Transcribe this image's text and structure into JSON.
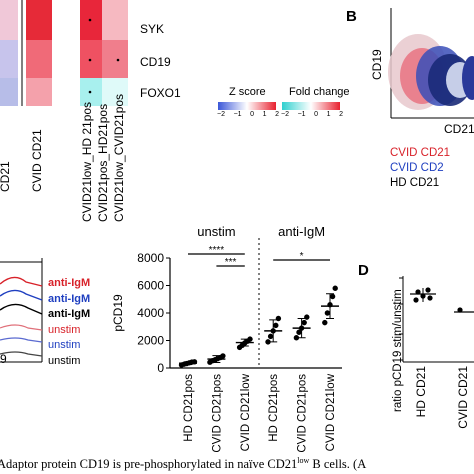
{
  "panel_letters": {
    "B": "B",
    "D": "D"
  },
  "heatmap": {
    "genes": [
      "SYK",
      "CD19",
      "FOXO1"
    ],
    "zscore_label": "Z score",
    "fold_label": "Fold change",
    "zscore_ticks": [
      "−2",
      "−1",
      "0",
      "1",
      "2"
    ],
    "fold_ticks": [
      "−2",
      "−1",
      "0",
      "1",
      "2"
    ],
    "col_labels_left": [
      "CD21",
      "CVID CD21"
    ],
    "col_labels_right": [
      "CVID21low_HD 21pos",
      "CVID21pos_HD21pos",
      "CVID21low_CVID21pos"
    ],
    "zscore_colors": {
      "low": "#3b57d8",
      "mid": "#ffffff",
      "high": "#e8212f"
    },
    "fold_colors": {
      "low": "#2fd0cf",
      "mid": "#ffffff",
      "high": "#e8212f"
    }
  },
  "flow_b": {
    "y_label": "CD19",
    "x_label": "CD21",
    "legend": [
      {
        "label": "CVID CD21",
        "color": "#d8222a"
      },
      {
        "label": "CVID CD2",
        "color": "#1f3fc0"
      },
      {
        "label": "HD CD21",
        "color": "#000000"
      }
    ]
  },
  "histogram": {
    "labels": [
      {
        "text": "anti-IgM",
        "color": "#d8222a"
      },
      {
        "text": "anti-IgM",
        "color": "#1f3fc0"
      },
      {
        "text": "anti-IgM",
        "color": "#000000"
      },
      {
        "text": "unstim",
        "color": "#d8222a"
      },
      {
        "text": "unstim",
        "color": "#1f3fc0"
      },
      {
        "text": "unstim",
        "color": "#000000"
      }
    ],
    "axis_fragment": "9"
  },
  "panel_d": {
    "ylabel": "ratio pCD19 stim/unstim",
    "tick_labels": [
      "HD CD21",
      "CVID CD21"
    ]
  },
  "caption": "Adaptor protein CD19 is pre-phosphorylated in naïve CD21",
  "caption_sup": "low",
  "caption_tail": " B cells. (A",
  "chart_data": {
    "type": "scatter",
    "ylabel": "pCD19",
    "ylim": [
      0,
      8000
    ],
    "yticks": [
      0,
      2000,
      4000,
      6000,
      8000
    ],
    "ytick_labels": [
      "0",
      "2000",
      "4000",
      "6000",
      "8000"
    ],
    "groups": [
      {
        "condition": "unstim",
        "label": "HD CD21pos",
        "mean": 350,
        "sd": 100,
        "points": [
          220,
          280,
          320,
          380,
          430,
          450
        ]
      },
      {
        "condition": "unstim",
        "label": "CVID CD21pos",
        "mean": 650,
        "sd": 250,
        "points": [
          420,
          530,
          600,
          680,
          760,
          880
        ]
      },
      {
        "condition": "unstim",
        "label": "CVID CD21low",
        "mean": 1850,
        "sd": 250,
        "points": [
          1500,
          1650,
          1820,
          1950,
          2100
        ]
      },
      {
        "condition": "anti-IgM",
        "label": "HD CD21pos",
        "mean": 2700,
        "sd": 800,
        "points": [
          1900,
          2300,
          2700,
          3100,
          3600
        ]
      },
      {
        "condition": "anti-IgM",
        "label": "CVID CD21pos",
        "mean": 2900,
        "sd": 700,
        "points": [
          2200,
          2600,
          2900,
          3300,
          3700
        ]
      },
      {
        "condition": "anti-IgM",
        "label": "CVID CD21low",
        "mean": 4500,
        "sd": 900,
        "points": [
          3300,
          4000,
          4600,
          5200,
          5800
        ]
      }
    ],
    "condition_labels": [
      "unstim",
      "anti-IgM"
    ],
    "significance": [
      {
        "from": 0,
        "to": 2,
        "label": "****"
      },
      {
        "from": 1,
        "to": 2,
        "label": "***"
      },
      {
        "from": 3,
        "to": 5,
        "label": "*"
      }
    ]
  }
}
